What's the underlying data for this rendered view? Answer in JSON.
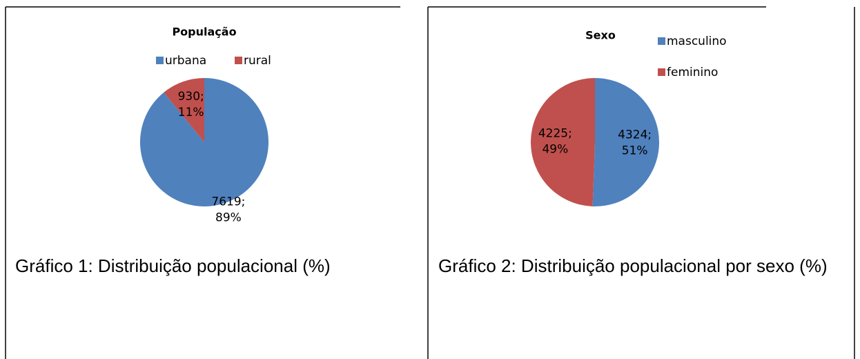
{
  "chart_data": [
    {
      "type": "pie",
      "title": "População",
      "categories": [
        "urbana",
        "rural"
      ],
      "values": [
        7619,
        930
      ],
      "value_labels": [
        [
          "7619;",
          "89%"
        ],
        [
          "930;",
          "11%"
        ]
      ],
      "colors": [
        "#4f81bd",
        "#c0504d"
      ],
      "legend": "top"
    },
    {
      "type": "pie",
      "title": "Sexo",
      "categories": [
        "masculino",
        "feminino"
      ],
      "values": [
        4324,
        4225
      ],
      "value_labels": [
        [
          "4324;",
          "51%"
        ],
        [
          "4225;",
          "49%"
        ]
      ],
      "colors": [
        "#4f81bd",
        "#c0504d"
      ],
      "legend": "right"
    }
  ],
  "captions": [
    "Gráfico 1: Distribuição populacional (%)",
    "Gráfico 2: Distribuição populacional por sexo (%)"
  ]
}
